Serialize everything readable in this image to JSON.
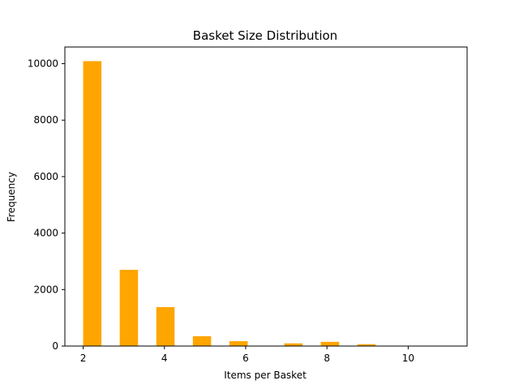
{
  "chart_data": {
    "type": "bar",
    "title": "Basket Size Distribution",
    "xlabel": "Items per Basket",
    "ylabel": "Frequency",
    "bar_color": "#ffa500",
    "xlim": [
      1.55,
      11.45
    ],
    "ylim": [
      0,
      10590
    ],
    "x_ticks": [
      2,
      4,
      6,
      8,
      10
    ],
    "y_ticks": [
      0,
      2000,
      4000,
      6000,
      8000,
      10000
    ],
    "bins": [
      {
        "start": 2.0,
        "end": 2.45,
        "value": 10090
      },
      {
        "start": 2.9,
        "end": 3.35,
        "value": 2700
      },
      {
        "start": 3.8,
        "end": 4.25,
        "value": 1380
      },
      {
        "start": 4.7,
        "end": 5.15,
        "value": 350
      },
      {
        "start": 5.6,
        "end": 6.05,
        "value": 175
      },
      {
        "start": 6.5,
        "end": 6.95,
        "value": 0
      },
      {
        "start": 6.95,
        "end": 7.4,
        "value": 95
      },
      {
        "start": 7.85,
        "end": 8.3,
        "value": 150
      },
      {
        "start": 8.75,
        "end": 9.2,
        "value": 65
      },
      {
        "start": 9.65,
        "end": 10.1,
        "value": 12
      },
      {
        "start": 10.55,
        "end": 11.0,
        "value": 5
      }
    ]
  }
}
